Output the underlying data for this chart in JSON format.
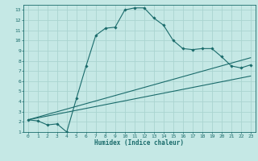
{
  "xlabel": "Humidex (Indice chaleur)",
  "ylabel": "",
  "bg_color": "#c5e8e5",
  "grid_color": "#aad4d0",
  "line_color": "#1a6b6b",
  "xlim": [
    -0.5,
    23.5
  ],
  "ylim": [
    1,
    13.5
  ],
  "xticks": [
    0,
    1,
    2,
    3,
    4,
    5,
    6,
    7,
    8,
    9,
    10,
    11,
    12,
    13,
    14,
    15,
    16,
    17,
    18,
    19,
    20,
    21,
    22,
    23
  ],
  "yticks": [
    1,
    2,
    3,
    4,
    5,
    6,
    7,
    8,
    9,
    10,
    11,
    12,
    13
  ],
  "curve1_x": [
    0,
    1,
    2,
    3,
    4,
    5,
    6,
    7,
    8,
    9,
    10,
    11,
    12,
    13,
    14,
    15,
    16,
    17,
    18,
    19,
    20,
    21,
    22,
    23
  ],
  "curve1_y": [
    2.2,
    2.1,
    1.7,
    1.8,
    1.0,
    4.3,
    7.5,
    10.5,
    11.2,
    11.3,
    13.0,
    13.2,
    13.2,
    12.2,
    11.5,
    10.0,
    9.2,
    9.1,
    9.2,
    9.2,
    8.4,
    7.5,
    7.3,
    7.6
  ],
  "line1_x": [
    0,
    23
  ],
  "line1_y": [
    2.2,
    8.3
  ],
  "line2_x": [
    0,
    23
  ],
  "line2_y": [
    2.2,
    6.5
  ]
}
